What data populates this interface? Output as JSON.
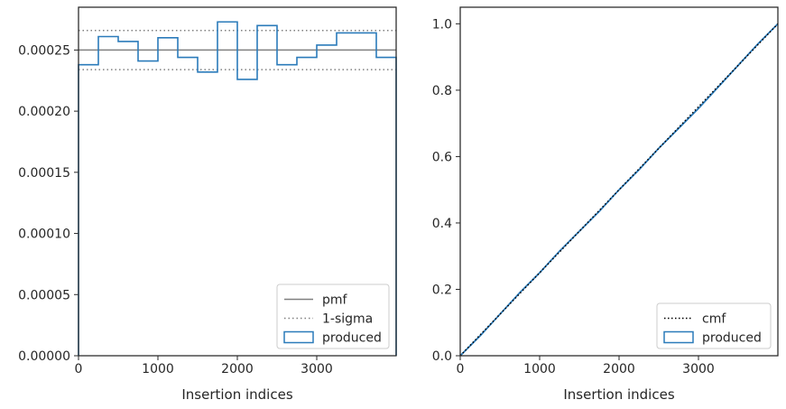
{
  "chart_data": [
    {
      "type": "histogram",
      "xlabel": "Insertion indices",
      "ylabel": "",
      "xlim": [
        0,
        4000
      ],
      "ylim": [
        0,
        0.000285
      ],
      "xticks": [
        0,
        1000,
        2000,
        3000
      ],
      "xtick_labels": [
        "0",
        "1000",
        "2000",
        "3000"
      ],
      "yticks": [
        0,
        5e-05,
        0.0001,
        0.00015,
        0.0002,
        0.00025
      ],
      "ytick_labels": [
        "0.00000",
        "0.00005",
        "0.00010",
        "0.00015",
        "0.00020",
        "0.00025"
      ],
      "lines": [
        {
          "name": "pmf",
          "style": "solid",
          "color": "#808080",
          "y": 0.00025
        },
        {
          "name": "1-sigma",
          "style": "dotted",
          "color": "#808080",
          "y": [
            0.000266,
            0.000234
          ]
        }
      ],
      "series": [
        {
          "name": "produced",
          "style": "step",
          "color": "#2b7bba",
          "bin_edges": [
            0,
            250,
            500,
            750,
            1000,
            1250,
            1500,
            1750,
            2000,
            2250,
            2500,
            2750,
            3000,
            3250,
            3500,
            3750,
            4000
          ],
          "values": [
            0.000238,
            0.000261,
            0.000257,
            0.000241,
            0.00026,
            0.000244,
            0.000232,
            0.000273,
            0.000226,
            0.00027,
            0.000238,
            0.000244,
            0.000254,
            0.000264,
            0.000264,
            0.000244
          ]
        }
      ],
      "legend": {
        "position": "lower-right",
        "entries": [
          "pmf",
          "1-sigma",
          "produced"
        ]
      }
    },
    {
      "type": "line",
      "xlabel": "Insertion indices",
      "ylabel": "",
      "xlim": [
        0,
        4000
      ],
      "ylim": [
        0,
        1.05
      ],
      "xticks": [
        0,
        1000,
        2000,
        3000
      ],
      "xtick_labels": [
        "0",
        "1000",
        "2000",
        "3000"
      ],
      "yticks": [
        0,
        0.2,
        0.4,
        0.6,
        0.8,
        1.0
      ],
      "ytick_labels": [
        "0.0",
        "0.2",
        "0.4",
        "0.6",
        "0.8",
        "1.0"
      ],
      "series": [
        {
          "name": "cmf",
          "style": "dotted",
          "color": "#000000",
          "x": [
            0,
            4000
          ],
          "y": [
            0,
            1.0
          ]
        },
        {
          "name": "produced",
          "style": "step",
          "color": "#2b7bba",
          "x": [
            0,
            250,
            500,
            750,
            1000,
            1250,
            1500,
            1750,
            2000,
            2250,
            2500,
            2750,
            3000,
            3250,
            3500,
            3750,
            4000
          ],
          "y": [
            0,
            0.06,
            0.125,
            0.19,
            0.25,
            0.315,
            0.375,
            0.435,
            0.5,
            0.56,
            0.625,
            0.685,
            0.745,
            0.81,
            0.875,
            0.94,
            1.0
          ]
        }
      ],
      "legend": {
        "position": "lower-right",
        "entries": [
          "cmf",
          "produced"
        ]
      }
    }
  ]
}
